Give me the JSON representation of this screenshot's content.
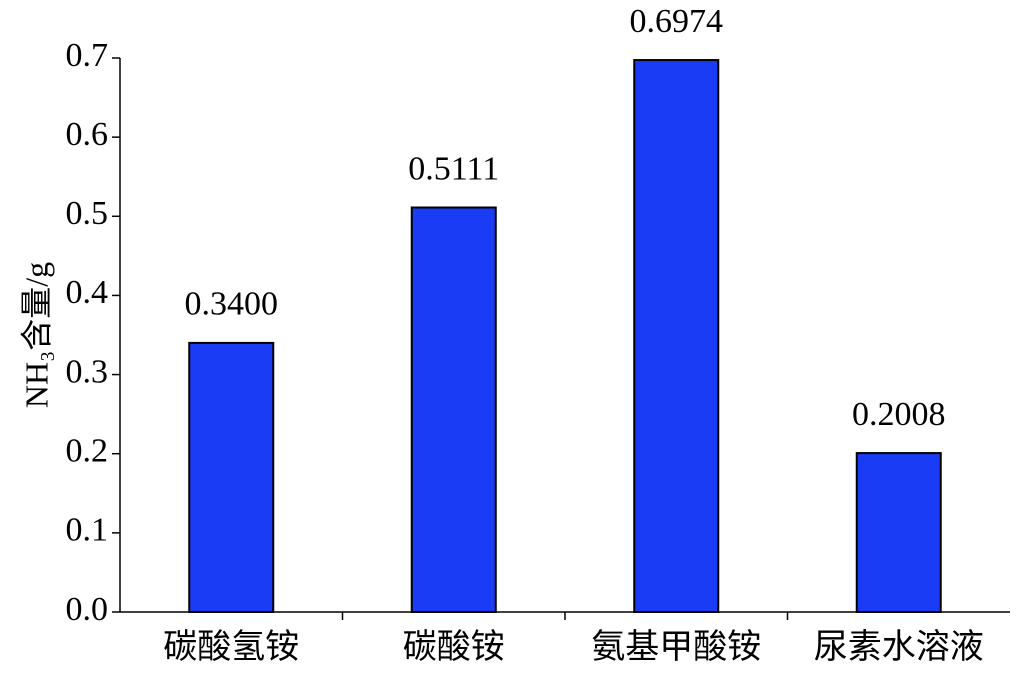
{
  "chart_data": {
    "type": "bar",
    "y_label": "NH₃含量/g",
    "categories": [
      "碳酸氢铵",
      "碳酸铵",
      "氨基甲酸铵",
      "尿素水溶液"
    ],
    "values": [
      0.34,
      0.5111,
      0.6974,
      0.2008
    ],
    "value_labels": [
      "0.3400",
      "0.5111",
      "0.6974",
      "0.2008"
    ],
    "color": "#1a3cf5",
    "ylim": [
      0,
      0.7
    ],
    "yticks": [
      {
        "value": 0,
        "label": "0.0"
      },
      0.1,
      0.2,
      0.3,
      0.4,
      0.5,
      0.6,
      0.7
    ],
    "grid": false
  }
}
